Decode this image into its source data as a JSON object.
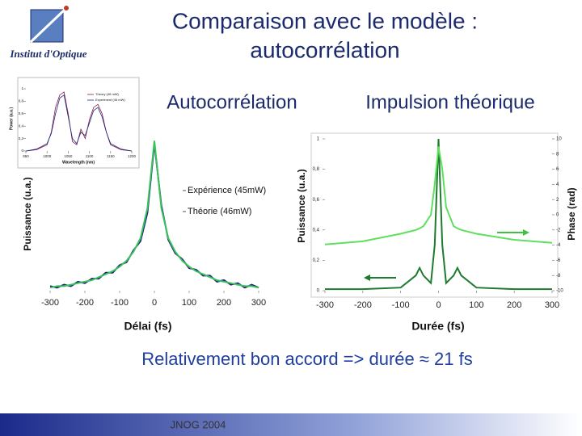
{
  "header": {
    "logo": "Institut d'Optique",
    "title": [
      "Comparaison avec le modèle :",
      "autocorrélation"
    ]
  },
  "chart_data": [
    {
      "type": "line",
      "title": "Autocorrélation",
      "xlabel": "Délai (fs)",
      "ylabel": "Puissance (u.a.)",
      "x": [
        -300,
        -280,
        -260,
        -240,
        -220,
        -200,
        -180,
        -160,
        -140,
        -120,
        -100,
        -80,
        -60,
        -40,
        -20,
        0,
        20,
        40,
        60,
        80,
        100,
        120,
        140,
        160,
        180,
        200,
        220,
        240,
        260,
        280,
        300
      ],
      "xlim": [
        -300,
        300
      ],
      "xticks": [
        -300,
        -200,
        -100,
        0,
        100,
        200,
        300
      ],
      "ylim": [
        0,
        1.05
      ],
      "series": [
        {
          "name": "Expérience (45mW)",
          "color": "#1a237e",
          "values": [
            0.03,
            0.02,
            0.04,
            0.03,
            0.06,
            0.05,
            0.08,
            0.08,
            0.12,
            0.12,
            0.17,
            0.19,
            0.27,
            0.33,
            0.52,
            0.98,
            0.57,
            0.34,
            0.25,
            0.21,
            0.15,
            0.14,
            0.1,
            0.1,
            0.06,
            0.07,
            0.04,
            0.05,
            0.02,
            0.04,
            0.02
          ]
        },
        {
          "name": "Théorie (46mW)",
          "color": "#3cc25a",
          "values": [
            0.02,
            0.03,
            0.03,
            0.04,
            0.05,
            0.06,
            0.07,
            0.09,
            0.11,
            0.13,
            0.16,
            0.2,
            0.26,
            0.35,
            0.55,
            1.0,
            0.55,
            0.35,
            0.26,
            0.2,
            0.16,
            0.13,
            0.11,
            0.09,
            0.07,
            0.06,
            0.05,
            0.04,
            0.03,
            0.03,
            0.02
          ]
        }
      ]
    },
    {
      "type": "line",
      "title": "Impulsion théorique",
      "xlabel": "Durée (fs)",
      "ylabel": "Puissance (u.a.)",
      "y2label": "Phase (rad)",
      "x": [
        -300,
        -200,
        -100,
        -60,
        -50,
        -40,
        -20,
        -10,
        0,
        10,
        20,
        40,
        50,
        60,
        100,
        200,
        300
      ],
      "xlim": [
        -300,
        300
      ],
      "xticks": [
        -300,
        -200,
        -100,
        0,
        100,
        200,
        300
      ],
      "ylim": [
        0,
        1
      ],
      "yticks": [
        0,
        {
          "value": 0.2,
          "label": "0,2"
        },
        {
          "value": 0.4,
          "label": "0,4"
        },
        {
          "value": 0.6,
          "label": "0,6"
        },
        {
          "value": 0.8,
          "label": "0,8"
        },
        1
      ],
      "y2lim": [
        -10,
        10
      ],
      "y2ticks": [
        -10,
        -8,
        -6,
        -4,
        -2,
        0,
        2,
        4,
        6,
        8,
        10
      ],
      "series": [
        {
          "name": "Puissance",
          "color": "#1e7a2e",
          "values": [
            0.01,
            0.01,
            0.02,
            0.1,
            0.15,
            0.1,
            0.05,
            0.3,
            1.0,
            0.3,
            0.05,
            0.1,
            0.15,
            0.1,
            0.02,
            0.01,
            0.01
          ]
        },
        {
          "name": "Phase",
          "color": "#5ee05e",
          "axis": "y2",
          "values": [
            -3.9,
            -3.5,
            -2.5,
            -2,
            -1.8,
            -1.5,
            0,
            4,
            9,
            6,
            1,
            -1.5,
            -1.8,
            -2,
            -2.5,
            -3.3,
            -3.7
          ]
        }
      ]
    },
    {
      "type": "line",
      "xlabel": "Wavelength (nm)",
      "ylabel": "Power (a.u.)",
      "x": [
        950,
        975,
        1000,
        1010,
        1020,
        1030,
        1040,
        1050,
        1060,
        1070,
        1080,
        1090,
        1100,
        1110,
        1120,
        1130,
        1140,
        1150,
        1175,
        1200
      ],
      "xlim": [
        950,
        1200
      ],
      "xticks": [
        950,
        1000,
        1050,
        1100,
        1150,
        1200
      ],
      "ylim": [
        0,
        1
      ],
      "yticks": [
        0,
        {
          "value": 0.2,
          "label": "0,2"
        },
        {
          "value": 0.4,
          "label": "0,4"
        },
        {
          "value": 0.6,
          "label": "0,6"
        },
        {
          "value": 0.8,
          "label": "0,8"
        },
        1
      ],
      "series": [
        {
          "name": "Theory (46 mW)",
          "color": "#8b1a4a",
          "values": [
            0,
            0.02,
            0.1,
            0.3,
            0.7,
            0.9,
            0.95,
            0.6,
            0.15,
            0.1,
            0.35,
            0.2,
            0.5,
            0.7,
            0.75,
            0.6,
            0.3,
            0.1,
            0.02,
            0
          ]
        },
        {
          "name": "Experiment (45 mW)",
          "color": "#1a2a80",
          "values": [
            0,
            0.03,
            0.12,
            0.28,
            0.6,
            0.85,
            0.9,
            0.55,
            0.2,
            0.12,
            0.3,
            0.25,
            0.45,
            0.65,
            0.7,
            0.55,
            0.3,
            0.12,
            0.03,
            0
          ]
        }
      ]
    }
  ],
  "conclusion": "Relativement bon accord => durée ≈ 21 fs",
  "footer": "JNOG 2004"
}
